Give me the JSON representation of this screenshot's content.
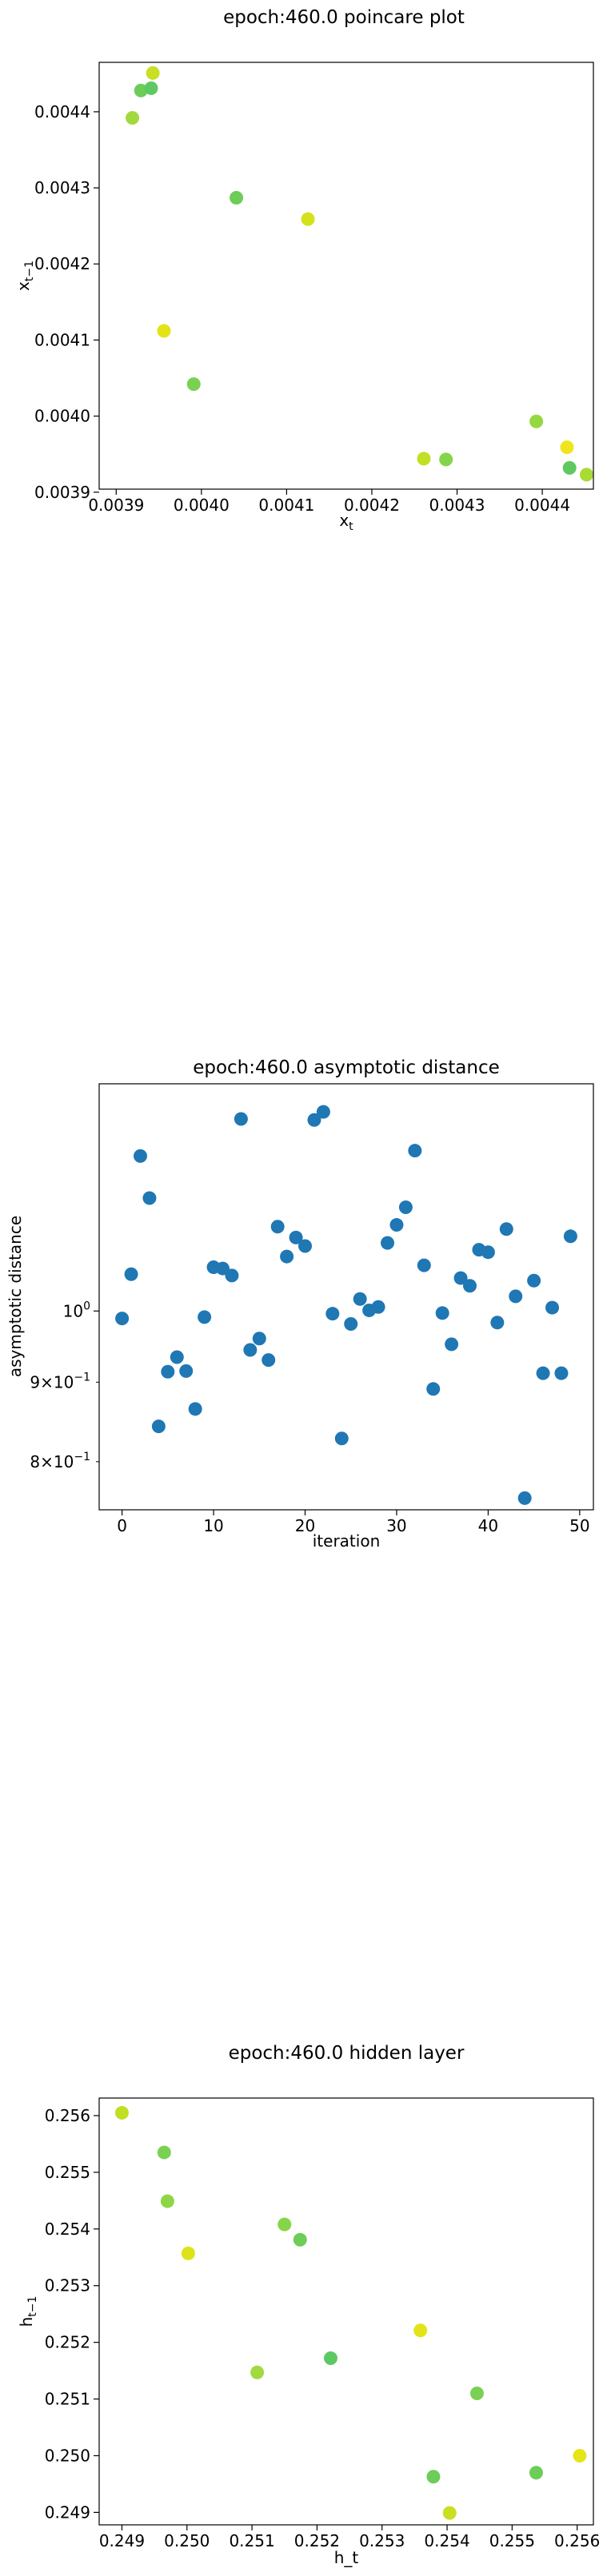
{
  "chart_data": [
    {
      "type": "scatter",
      "title": "epoch:460.0 poincare plot",
      "xlabel_base": "x",
      "xlabel_sub": "t",
      "ylabel_base": "x",
      "ylabel_sub": "t−1",
      "xlim": [
        0.00388,
        0.00446
      ],
      "ylim": [
        0.003904,
        0.004465
      ],
      "xticks": [
        0.0039,
        0.004,
        0.0041,
        0.0042,
        0.0043,
        0.0044
      ],
      "xtick_labels": [
        "0.0039",
        "0.0040",
        "0.0041",
        "0.0042",
        "0.0043",
        "0.0044"
      ],
      "yticks": [
        0.0039,
        0.004,
        0.0041,
        0.0042,
        0.0043,
        0.0044
      ],
      "ytick_labels": [
        "0.0039",
        "0.0040",
        "0.0041",
        "0.0042",
        "0.0043",
        "0.0044"
      ],
      "points": [
        {
          "x": 0.003919,
          "y": 0.004392,
          "color": "#a2d93f"
        },
        {
          "x": 0.003929,
          "y": 0.004428,
          "color": "#6ccd59"
        },
        {
          "x": 0.003941,
          "y": 0.004431,
          "color": "#5ec962"
        },
        {
          "x": 0.003943,
          "y": 0.004451,
          "color": "#c8df22"
        },
        {
          "x": 0.003956,
          "y": 0.004112,
          "color": "#e2e418"
        },
        {
          "x": 0.003991,
          "y": 0.004042,
          "color": "#7ad151"
        },
        {
          "x": 0.004041,
          "y": 0.004287,
          "color": "#6ccd59"
        },
        {
          "x": 0.004125,
          "y": 0.004259,
          "color": "#d3e21b"
        },
        {
          "x": 0.004261,
          "y": 0.003944,
          "color": "#c2df23"
        },
        {
          "x": 0.004287,
          "y": 0.003943,
          "color": "#86d549"
        },
        {
          "x": 0.004393,
          "y": 0.003993,
          "color": "#95d840"
        },
        {
          "x": 0.004429,
          "y": 0.003959,
          "color": "#f0e51c"
        },
        {
          "x": 0.004432,
          "y": 0.003932,
          "color": "#5ec962"
        },
        {
          "x": 0.004452,
          "y": 0.003923,
          "color": "#a8db34"
        }
      ]
    },
    {
      "type": "scatter",
      "title": "epoch:460.0 asymptotic distance",
      "xlabel": "iteration",
      "ylabel": "asymptotic distance",
      "yscale": "log",
      "xlim": [
        -2.5,
        51.5
      ],
      "ylim": [
        0.745,
        1.4
      ],
      "xticks": [
        0,
        10,
        20,
        30,
        40,
        50
      ],
      "xtick_labels": [
        "0",
        "10",
        "20",
        "30",
        "40",
        "50"
      ],
      "ytick_major": [
        {
          "value": 1.0,
          "base": "10",
          "exp": "0"
        }
      ],
      "ytick_minor": [
        {
          "value": 0.8,
          "mant": "8×10",
          "exp": "−1"
        },
        {
          "value": 0.9,
          "mant": "9×10",
          "exp": "−1"
        }
      ],
      "point_color": "#1f77b4",
      "x": [
        0,
        1,
        2,
        3,
        4,
        5,
        6,
        7,
        8,
        9,
        10,
        11,
        12,
        13,
        14,
        15,
        16,
        17,
        18,
        19,
        20,
        21,
        22,
        23,
        24,
        25,
        26,
        27,
        28,
        29,
        30,
        31,
        32,
        33,
        34,
        35,
        36,
        37,
        38,
        39,
        40,
        41,
        42,
        43,
        44,
        45,
        46,
        47,
        48,
        49
      ],
      "y": [
        0.989,
        1.056,
        1.258,
        1.182,
        0.843,
        0.914,
        0.934,
        0.915,
        0.865,
        0.991,
        1.067,
        1.065,
        1.054,
        1.329,
        0.944,
        0.96,
        0.93,
        1.133,
        1.084,
        1.115,
        1.101,
        1.327,
        1.343,
        0.996,
        0.828,
        0.981,
        1.018,
        1.001,
        1.006,
        1.106,
        1.136,
        1.166,
        1.268,
        1.07,
        0.891,
        0.997,
        0.952,
        1.05,
        1.038,
        1.095,
        1.091,
        0.983,
        1.129,
        1.022,
        0.758,
        1.046,
        0.912,
        1.005,
        0.912,
        1.117
      ]
    },
    {
      "type": "scatter",
      "title": "epoch:460.0 hidden layer",
      "xlabel": "h_t",
      "ylabel_base": "h",
      "ylabel_sub": "t−1",
      "xlim": [
        0.24865,
        0.25625
      ],
      "ylim": [
        0.24878,
        0.25631
      ],
      "xticks": [
        0.249,
        0.25,
        0.251,
        0.252,
        0.253,
        0.254,
        0.255,
        0.256
      ],
      "xtick_labels": [
        "0.249",
        "0.250",
        "0.251",
        "0.252",
        "0.253",
        "0.254",
        "0.255",
        "0.256"
      ],
      "yticks": [
        0.249,
        0.25,
        0.251,
        0.252,
        0.253,
        0.254,
        0.255,
        0.256
      ],
      "ytick_labels": [
        "0.249",
        "0.250",
        "0.251",
        "0.252",
        "0.253",
        "0.254",
        "0.255",
        "0.256"
      ],
      "points": [
        {
          "x": 0.249,
          "y": 0.25605,
          "color": "#c2df23"
        },
        {
          "x": 0.24965,
          "y": 0.25535,
          "color": "#7ad151"
        },
        {
          "x": 0.2497,
          "y": 0.25449,
          "color": "#8ed645"
        },
        {
          "x": 0.25002,
          "y": 0.25357,
          "color": "#dde318"
        },
        {
          "x": 0.25108,
          "y": 0.25147,
          "color": "#a2d93f"
        },
        {
          "x": 0.2515,
          "y": 0.25408,
          "color": "#86d549"
        },
        {
          "x": 0.25174,
          "y": 0.25381,
          "color": "#6ccd59"
        },
        {
          "x": 0.25221,
          "y": 0.25172,
          "color": "#5ec962"
        },
        {
          "x": 0.25359,
          "y": 0.25221,
          "color": "#e2e418"
        },
        {
          "x": 0.25379,
          "y": 0.24963,
          "color": "#6ccd59"
        },
        {
          "x": 0.25404,
          "y": 0.24899,
          "color": "#c8df22"
        },
        {
          "x": 0.25446,
          "y": 0.2511,
          "color": "#7ad151"
        },
        {
          "x": 0.25537,
          "y": 0.2497,
          "color": "#6ccd59"
        },
        {
          "x": 0.25604,
          "y": 0.25,
          "color": "#e7e419"
        }
      ]
    }
  ]
}
